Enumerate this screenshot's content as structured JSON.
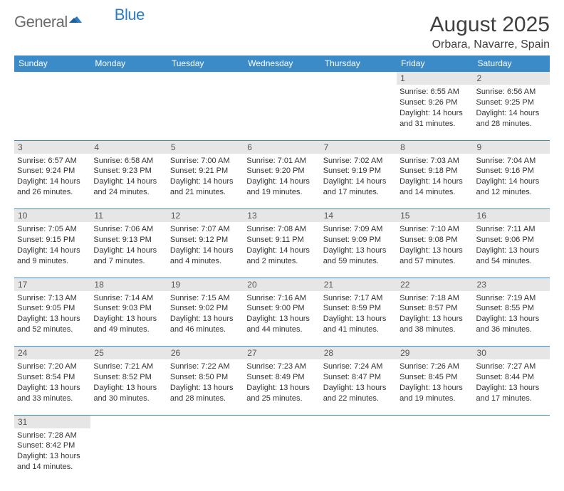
{
  "logo": {
    "general": "General",
    "blue": "Blue"
  },
  "header": {
    "title": "August 2025",
    "subtitle": "Orbara, Navarre, Spain"
  },
  "colors": {
    "header_bg": "#3b8bc9",
    "header_text": "#ffffff",
    "daynum_bg": "#e6e6e6",
    "border": "#3b8bc9",
    "text": "#333333",
    "title": "#404040",
    "logo_gray": "#6a6a6a",
    "logo_blue": "#2d7cc1"
  },
  "day_names": [
    "Sunday",
    "Monday",
    "Tuesday",
    "Wednesday",
    "Thursday",
    "Friday",
    "Saturday"
  ],
  "weeks": [
    [
      null,
      null,
      null,
      null,
      null,
      {
        "d": "1",
        "sr": "Sunrise: 6:55 AM",
        "ss": "Sunset: 9:26 PM",
        "dl1": "Daylight: 14 hours",
        "dl2": "and 31 minutes."
      },
      {
        "d": "2",
        "sr": "Sunrise: 6:56 AM",
        "ss": "Sunset: 9:25 PM",
        "dl1": "Daylight: 14 hours",
        "dl2": "and 28 minutes."
      }
    ],
    [
      {
        "d": "3",
        "sr": "Sunrise: 6:57 AM",
        "ss": "Sunset: 9:24 PM",
        "dl1": "Daylight: 14 hours",
        "dl2": "and 26 minutes."
      },
      {
        "d": "4",
        "sr": "Sunrise: 6:58 AM",
        "ss": "Sunset: 9:23 PM",
        "dl1": "Daylight: 14 hours",
        "dl2": "and 24 minutes."
      },
      {
        "d": "5",
        "sr": "Sunrise: 7:00 AM",
        "ss": "Sunset: 9:21 PM",
        "dl1": "Daylight: 14 hours",
        "dl2": "and 21 minutes."
      },
      {
        "d": "6",
        "sr": "Sunrise: 7:01 AM",
        "ss": "Sunset: 9:20 PM",
        "dl1": "Daylight: 14 hours",
        "dl2": "and 19 minutes."
      },
      {
        "d": "7",
        "sr": "Sunrise: 7:02 AM",
        "ss": "Sunset: 9:19 PM",
        "dl1": "Daylight: 14 hours",
        "dl2": "and 17 minutes."
      },
      {
        "d": "8",
        "sr": "Sunrise: 7:03 AM",
        "ss": "Sunset: 9:18 PM",
        "dl1": "Daylight: 14 hours",
        "dl2": "and 14 minutes."
      },
      {
        "d": "9",
        "sr": "Sunrise: 7:04 AM",
        "ss": "Sunset: 9:16 PM",
        "dl1": "Daylight: 14 hours",
        "dl2": "and 12 minutes."
      }
    ],
    [
      {
        "d": "10",
        "sr": "Sunrise: 7:05 AM",
        "ss": "Sunset: 9:15 PM",
        "dl1": "Daylight: 14 hours",
        "dl2": "and 9 minutes."
      },
      {
        "d": "11",
        "sr": "Sunrise: 7:06 AM",
        "ss": "Sunset: 9:13 PM",
        "dl1": "Daylight: 14 hours",
        "dl2": "and 7 minutes."
      },
      {
        "d": "12",
        "sr": "Sunrise: 7:07 AM",
        "ss": "Sunset: 9:12 PM",
        "dl1": "Daylight: 14 hours",
        "dl2": "and 4 minutes."
      },
      {
        "d": "13",
        "sr": "Sunrise: 7:08 AM",
        "ss": "Sunset: 9:11 PM",
        "dl1": "Daylight: 14 hours",
        "dl2": "and 2 minutes."
      },
      {
        "d": "14",
        "sr": "Sunrise: 7:09 AM",
        "ss": "Sunset: 9:09 PM",
        "dl1": "Daylight: 13 hours",
        "dl2": "and 59 minutes."
      },
      {
        "d": "15",
        "sr": "Sunrise: 7:10 AM",
        "ss": "Sunset: 9:08 PM",
        "dl1": "Daylight: 13 hours",
        "dl2": "and 57 minutes."
      },
      {
        "d": "16",
        "sr": "Sunrise: 7:11 AM",
        "ss": "Sunset: 9:06 PM",
        "dl1": "Daylight: 13 hours",
        "dl2": "and 54 minutes."
      }
    ],
    [
      {
        "d": "17",
        "sr": "Sunrise: 7:13 AM",
        "ss": "Sunset: 9:05 PM",
        "dl1": "Daylight: 13 hours",
        "dl2": "and 52 minutes."
      },
      {
        "d": "18",
        "sr": "Sunrise: 7:14 AM",
        "ss": "Sunset: 9:03 PM",
        "dl1": "Daylight: 13 hours",
        "dl2": "and 49 minutes."
      },
      {
        "d": "19",
        "sr": "Sunrise: 7:15 AM",
        "ss": "Sunset: 9:02 PM",
        "dl1": "Daylight: 13 hours",
        "dl2": "and 46 minutes."
      },
      {
        "d": "20",
        "sr": "Sunrise: 7:16 AM",
        "ss": "Sunset: 9:00 PM",
        "dl1": "Daylight: 13 hours",
        "dl2": "and 44 minutes."
      },
      {
        "d": "21",
        "sr": "Sunrise: 7:17 AM",
        "ss": "Sunset: 8:59 PM",
        "dl1": "Daylight: 13 hours",
        "dl2": "and 41 minutes."
      },
      {
        "d": "22",
        "sr": "Sunrise: 7:18 AM",
        "ss": "Sunset: 8:57 PM",
        "dl1": "Daylight: 13 hours",
        "dl2": "and 38 minutes."
      },
      {
        "d": "23",
        "sr": "Sunrise: 7:19 AM",
        "ss": "Sunset: 8:55 PM",
        "dl1": "Daylight: 13 hours",
        "dl2": "and 36 minutes."
      }
    ],
    [
      {
        "d": "24",
        "sr": "Sunrise: 7:20 AM",
        "ss": "Sunset: 8:54 PM",
        "dl1": "Daylight: 13 hours",
        "dl2": "and 33 minutes."
      },
      {
        "d": "25",
        "sr": "Sunrise: 7:21 AM",
        "ss": "Sunset: 8:52 PM",
        "dl1": "Daylight: 13 hours",
        "dl2": "and 30 minutes."
      },
      {
        "d": "26",
        "sr": "Sunrise: 7:22 AM",
        "ss": "Sunset: 8:50 PM",
        "dl1": "Daylight: 13 hours",
        "dl2": "and 28 minutes."
      },
      {
        "d": "27",
        "sr": "Sunrise: 7:23 AM",
        "ss": "Sunset: 8:49 PM",
        "dl1": "Daylight: 13 hours",
        "dl2": "and 25 minutes."
      },
      {
        "d": "28",
        "sr": "Sunrise: 7:24 AM",
        "ss": "Sunset: 8:47 PM",
        "dl1": "Daylight: 13 hours",
        "dl2": "and 22 minutes."
      },
      {
        "d": "29",
        "sr": "Sunrise: 7:26 AM",
        "ss": "Sunset: 8:45 PM",
        "dl1": "Daylight: 13 hours",
        "dl2": "and 19 minutes."
      },
      {
        "d": "30",
        "sr": "Sunrise: 7:27 AM",
        "ss": "Sunset: 8:44 PM",
        "dl1": "Daylight: 13 hours",
        "dl2": "and 17 minutes."
      }
    ],
    [
      {
        "d": "31",
        "sr": "Sunrise: 7:28 AM",
        "ss": "Sunset: 8:42 PM",
        "dl1": "Daylight: 13 hours",
        "dl2": "and 14 minutes."
      },
      null,
      null,
      null,
      null,
      null,
      null
    ]
  ]
}
